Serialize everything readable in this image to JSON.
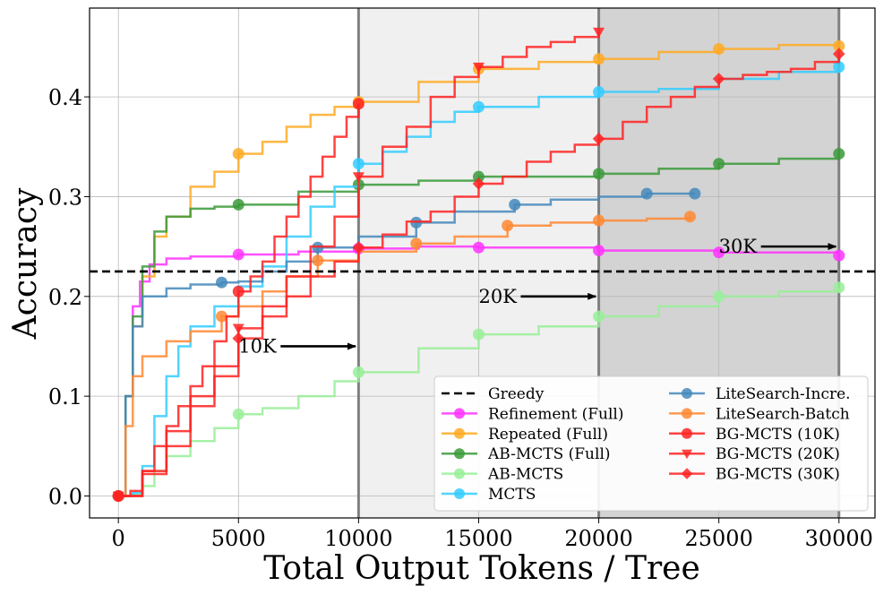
{
  "chart_data": {
    "type": "line",
    "title": "",
    "xlabel": "Total Output Tokens / Tree",
    "ylabel": "Accuracy",
    "xlim": [
      -1200,
      31500
    ],
    "ylim": [
      -0.022,
      0.489
    ],
    "xticks": [
      0,
      5000,
      10000,
      15000,
      20000,
      25000,
      30000
    ],
    "xtick_labels": [
      "0",
      "5000",
      "10000",
      "15000",
      "20000",
      "25000",
      "30000"
    ],
    "yticks": [
      0.0,
      0.1,
      0.2,
      0.3,
      0.4
    ],
    "ytick_labels": [
      "0.0",
      "0.1",
      "0.2",
      "0.3",
      "0.4"
    ],
    "grid": true,
    "legend_position": "bottom-right",
    "shaded_regions": [
      {
        "x0": 10000,
        "x1": 20000,
        "color": "#f0f0f0"
      },
      {
        "x0": 20000,
        "x1": 30000,
        "color": "#d3d3d3"
      }
    ],
    "budget_lines": [
      10000,
      20000,
      30000
    ],
    "greedy": {
      "name": "Greedy",
      "value": 0.225
    },
    "annotations": [
      {
        "text": "10K",
        "text_x": 5000,
        "text_y": 0.15,
        "arrow_to_x": 9950
      },
      {
        "text": "20K",
        "text_x": 15000,
        "text_y": 0.2,
        "arrow_to_x": 19950
      },
      {
        "text": "30K",
        "text_x": 25000,
        "text_y": 0.25,
        "arrow_to_x": 29950
      }
    ],
    "series": [
      {
        "name": "Refinement (Full)",
        "color": "#ff33ff",
        "marker": "o",
        "x": [
          0,
          300,
          600,
          900,
          1300,
          2000,
          3000,
          5000,
          7500,
          10000,
          12500,
          15000,
          20000,
          25000,
          30000
        ],
        "y": [
          0,
          0.1,
          0.19,
          0.215,
          0.232,
          0.238,
          0.24,
          0.242,
          0.245,
          0.248,
          0.25,
          0.249,
          0.246,
          0.244,
          0.241
        ],
        "mx": [
          0,
          5000,
          10000,
          15000,
          20000,
          25000,
          30000
        ],
        "my": [
          0,
          0.242,
          0.248,
          0.249,
          0.246,
          0.244,
          0.241
        ]
      },
      {
        "name": "Repeated (Full)",
        "color": "#ffaa22",
        "marker": "o",
        "x": [
          0,
          300,
          600,
          1000,
          1500,
          2000,
          3000,
          4000,
          5000,
          6000,
          7000,
          8000,
          9000,
          10000,
          12500,
          15000,
          17500,
          20000,
          22500,
          25000,
          27500,
          30000
        ],
        "y": [
          0,
          0.1,
          0.17,
          0.22,
          0.26,
          0.28,
          0.31,
          0.325,
          0.343,
          0.355,
          0.37,
          0.382,
          0.39,
          0.395,
          0.415,
          0.428,
          0.435,
          0.438,
          0.445,
          0.448,
          0.452,
          0.451
        ],
        "mx": [
          0,
          5000,
          10000,
          15000,
          20000,
          25000,
          30000
        ],
        "my": [
          0,
          0.343,
          0.395,
          0.428,
          0.438,
          0.448,
          0.451
        ]
      },
      {
        "name": "AB-MCTS (Full)",
        "color": "#3a9a3a",
        "marker": "o",
        "x": [
          0,
          300,
          600,
          1000,
          1500,
          2000,
          3000,
          4000,
          5000,
          7500,
          10000,
          12500,
          15000,
          17500,
          20000,
          22500,
          25000,
          27500,
          30000
        ],
        "y": [
          0,
          0.1,
          0.18,
          0.23,
          0.265,
          0.28,
          0.288,
          0.29,
          0.292,
          0.305,
          0.312,
          0.316,
          0.32,
          0.32,
          0.323,
          0.328,
          0.333,
          0.338,
          0.343
        ],
        "mx": [
          0,
          5000,
          10000,
          15000,
          20000,
          25000,
          30000
        ],
        "my": [
          0,
          0.292,
          0.312,
          0.32,
          0.323,
          0.333,
          0.343
        ]
      },
      {
        "name": "AB-MCTS",
        "color": "#99ee99",
        "marker": "o",
        "x": [
          0,
          500,
          1000,
          1500,
          2000,
          3000,
          4000,
          5000,
          6000,
          7500,
          9000,
          10000,
          12500,
          15000,
          17500,
          20000,
          22500,
          25000,
          27500,
          30000
        ],
        "y": [
          0,
          0.002,
          0.01,
          0.025,
          0.04,
          0.055,
          0.068,
          0.082,
          0.088,
          0.1,
          0.115,
          0.124,
          0.148,
          0.162,
          0.17,
          0.18,
          0.19,
          0.2,
          0.205,
          0.209
        ],
        "mx": [
          0,
          5000,
          10000,
          15000,
          20000,
          25000,
          30000
        ],
        "my": [
          0,
          0.082,
          0.124,
          0.162,
          0.18,
          0.2,
          0.209
        ]
      },
      {
        "name": "MCTS",
        "color": "#33ccff",
        "marker": "o",
        "x": [
          0,
          600,
          1000,
          1500,
          2000,
          2500,
          3000,
          4000,
          5000,
          6000,
          7000,
          8000,
          9000,
          10000,
          11000,
          12000,
          13000,
          14000,
          15000,
          17500,
          20000,
          22500,
          25000,
          27500,
          30000
        ],
        "y": [
          0,
          0.003,
          0.03,
          0.08,
          0.12,
          0.15,
          0.17,
          0.19,
          0.21,
          0.23,
          0.26,
          0.29,
          0.31,
          0.333,
          0.345,
          0.36,
          0.375,
          0.385,
          0.39,
          0.4,
          0.405,
          0.408,
          0.418,
          0.425,
          0.43
        ],
        "mx": [
          0,
          10000,
          15000,
          20000,
          30000
        ],
        "my": [
          0,
          0.333,
          0.39,
          0.405,
          0.43
        ]
      },
      {
        "name": "LiteSearch-Incre.",
        "color": "#4488bb",
        "marker": "o",
        "x": [
          0,
          300,
          600,
          1000,
          2000,
          3000,
          4300,
          5000,
          6000,
          7000,
          8300,
          10000,
          12400,
          14000,
          16500,
          18000,
          20000,
          22000,
          24000
        ],
        "y": [
          0,
          0.1,
          0.17,
          0.2,
          0.208,
          0.212,
          0.214,
          0.215,
          0.225,
          0.235,
          0.249,
          0.26,
          0.274,
          0.285,
          0.292,
          0.297,
          0.3,
          0.303,
          0.303
        ],
        "mx": [
          0,
          4300,
          8300,
          12400,
          16500,
          22000,
          24000
        ],
        "my": [
          0,
          0.214,
          0.249,
          0.274,
          0.292,
          0.303,
          0.303
        ]
      },
      {
        "name": "LiteSearch-Batch",
        "color": "#ff8833",
        "marker": "o",
        "x": [
          0,
          300,
          600,
          1000,
          2000,
          3000,
          4300,
          5000,
          6000,
          7000,
          8300,
          10000,
          12400,
          14000,
          16200,
          18000,
          20000,
          22000,
          23800
        ],
        "y": [
          0,
          0.07,
          0.12,
          0.14,
          0.155,
          0.165,
          0.18,
          0.19,
          0.205,
          0.22,
          0.236,
          0.245,
          0.253,
          0.26,
          0.271,
          0.274,
          0.276,
          0.278,
          0.28
        ],
        "mx": [
          0,
          4300,
          8300,
          12400,
          16200,
          20000,
          23800
        ],
        "my": [
          0,
          0.18,
          0.236,
          0.253,
          0.271,
          0.276,
          0.28
        ]
      },
      {
        "name": "BG-MCTS (10K)",
        "color": "#ff2222",
        "marker": "o",
        "x": [
          0,
          500,
          1000,
          1500,
          2000,
          2500,
          3000,
          3500,
          4000,
          4500,
          5000,
          5500,
          6000,
          6500,
          7000,
          7500,
          8000,
          8500,
          9000,
          9500,
          10000
        ],
        "y": [
          0,
          0.005,
          0.025,
          0.05,
          0.07,
          0.09,
          0.11,
          0.13,
          0.155,
          0.18,
          0.205,
          0.22,
          0.235,
          0.26,
          0.28,
          0.3,
          0.32,
          0.34,
          0.36,
          0.38,
          0.393
        ],
        "mx": [
          0,
          5000,
          10000
        ],
        "my": [
          0,
          0.205,
          0.393
        ]
      },
      {
        "name": "BG-MCTS (20K)",
        "color": "#ff2222",
        "marker": "v",
        "x": [
          0,
          1000,
          2000,
          3000,
          4000,
          5000,
          6000,
          7000,
          8000,
          9000,
          10000,
          11000,
          12000,
          13000,
          14000,
          15000,
          16000,
          17000,
          18000,
          19000,
          20000
        ],
        "y": [
          0,
          0.025,
          0.065,
          0.1,
          0.13,
          0.168,
          0.19,
          0.22,
          0.25,
          0.28,
          0.32,
          0.35,
          0.37,
          0.4,
          0.42,
          0.43,
          0.44,
          0.45,
          0.455,
          0.46,
          0.465
        ],
        "mx": [
          0,
          5000,
          10000,
          15000,
          20000
        ],
        "my": [
          0,
          0.168,
          0.32,
          0.43,
          0.465
        ]
      },
      {
        "name": "BG-MCTS (30K)",
        "color": "#ff2222",
        "marker": "D",
        "x": [
          0,
          1000,
          2000,
          3000,
          4000,
          5000,
          6000,
          7000,
          8000,
          9000,
          10000,
          11000,
          12000,
          13000,
          14000,
          15000,
          16000,
          17000,
          18000,
          19000,
          20000,
          21000,
          22000,
          23000,
          24000,
          25000,
          26000,
          27000,
          28000,
          29000,
          30000
        ],
        "y": [
          0,
          0.022,
          0.05,
          0.09,
          0.12,
          0.158,
          0.18,
          0.2,
          0.22,
          0.235,
          0.249,
          0.262,
          0.275,
          0.285,
          0.3,
          0.313,
          0.32,
          0.335,
          0.345,
          0.352,
          0.358,
          0.375,
          0.39,
          0.4,
          0.41,
          0.418,
          0.422,
          0.425,
          0.428,
          0.435,
          0.443
        ],
        "mx": [
          0,
          5000,
          10000,
          15000,
          20000,
          25000,
          30000
        ],
        "my": [
          0,
          0.158,
          0.249,
          0.313,
          0.358,
          0.418,
          0.443
        ]
      }
    ]
  }
}
